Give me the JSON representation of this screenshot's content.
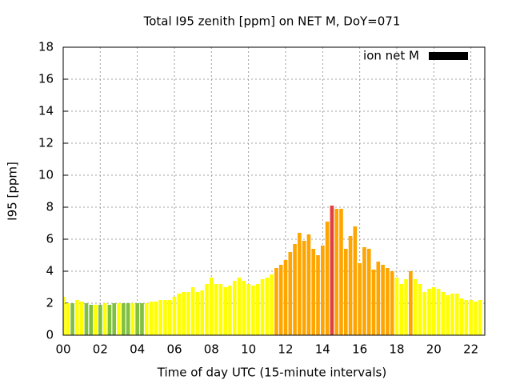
{
  "chart_data": {
    "type": "bar",
    "title": "Total I95 zenith [ppm] on NET M, DoY=071",
    "xlabel": "Time of day UTC (15-minute intervals)",
    "ylabel": "I95 [ppm]",
    "xlim": [
      0,
      22.75
    ],
    "ylim": [
      0,
      18
    ],
    "xticks": [
      {
        "value": 0,
        "label": "00"
      },
      {
        "value": 2,
        "label": "02"
      },
      {
        "value": 4,
        "label": "04"
      },
      {
        "value": 6,
        "label": "06"
      },
      {
        "value": 8,
        "label": "08"
      },
      {
        "value": 10,
        "label": "10"
      },
      {
        "value": 12,
        "label": "12"
      },
      {
        "value": 14,
        "label": "14"
      },
      {
        "value": 16,
        "label": "16"
      },
      {
        "value": 18,
        "label": "18"
      },
      {
        "value": 20,
        "label": "20"
      },
      {
        "value": 22,
        "label": "22"
      }
    ],
    "yticks": [
      0,
      2,
      4,
      6,
      8,
      10,
      12,
      14,
      16,
      18
    ],
    "grid": true,
    "legend": "top-right",
    "x": [
      0,
      0.25,
      0.5,
      0.75,
      1,
      1.25,
      1.5,
      1.75,
      2,
      2.25,
      2.5,
      2.75,
      3,
      3.25,
      3.5,
      3.75,
      4,
      4.25,
      4.5,
      4.75,
      5,
      5.25,
      5.5,
      5.75,
      6,
      6.25,
      6.5,
      6.75,
      7,
      7.25,
      7.5,
      7.75,
      8,
      8.25,
      8.5,
      8.75,
      9,
      9.25,
      9.5,
      9.75,
      10,
      10.25,
      10.5,
      10.75,
      11,
      11.25,
      11.5,
      11.75,
      12,
      12.25,
      12.5,
      12.75,
      13,
      13.25,
      13.5,
      13.75,
      14,
      14.25,
      14.5,
      14.75,
      15,
      15.25,
      15.5,
      15.75,
      16,
      16.25,
      16.5,
      16.75,
      17,
      17.25,
      17.5,
      17.75,
      18,
      18.25,
      18.5,
      18.75,
      19,
      19.25,
      19.5,
      19.75,
      20,
      20.25,
      20.5,
      20.75,
      21,
      21.25,
      21.5,
      21.75,
      22,
      22.25,
      22.5
    ],
    "series": [
      {
        "name": "ion net M",
        "color": "#000000",
        "values": [
          2.4,
          2.0,
          2.0,
          2.2,
          2.1,
          2.0,
          1.9,
          1.9,
          1.9,
          2.0,
          1.9,
          2.0,
          2.0,
          2.0,
          2.0,
          2.0,
          2.0,
          2.0,
          2.0,
          2.1,
          2.1,
          2.2,
          2.2,
          2.2,
          2.4,
          2.6,
          2.7,
          2.7,
          3.0,
          2.7,
          2.8,
          3.2,
          3.6,
          3.2,
          3.2,
          3.0,
          3.1,
          3.4,
          3.6,
          3.4,
          3.2,
          3.1,
          3.2,
          3.5,
          3.6,
          3.8,
          4.2,
          4.4,
          4.7,
          5.2,
          5.7,
          6.4,
          5.9,
          6.3,
          5.4,
          5.0,
          5.6,
          7.1,
          8.1,
          7.9,
          7.9,
          5.4,
          6.2,
          6.8,
          4.5,
          5.5,
          5.4,
          4.1,
          4.6,
          4.4,
          4.2,
          4.0,
          3.6,
          3.2,
          3.5,
          4.0,
          3.5,
          3.2,
          2.7,
          2.9,
          3.0,
          2.9,
          2.7,
          2.5,
          2.6,
          2.6,
          2.3,
          2.2,
          2.2,
          2.1,
          2.2
        ],
        "colors": [
          "#ffff00",
          "#ffff00",
          "#80c040",
          "#ffff00",
          "#ffff00",
          "#80c040",
          "#80c040",
          "#ffff00",
          "#80c040",
          "#ffff00",
          "#80c040",
          "#80c040",
          "#ffff00",
          "#80c040",
          "#80c040",
          "#ffff00",
          "#80c040",
          "#80c040",
          "#ffff00",
          "#ffff00",
          "#ffff00",
          "#ffff00",
          "#ffff00",
          "#ffff00",
          "#ffff00",
          "#ffff00",
          "#ffff00",
          "#ffff00",
          "#ffff00",
          "#ffff00",
          "#ffff00",
          "#ffff00",
          "#ffff00",
          "#ffff00",
          "#ffff00",
          "#ffff00",
          "#ffff00",
          "#ffff00",
          "#ffff00",
          "#ffff00",
          "#ffff00",
          "#ffff00",
          "#ffff00",
          "#ffff00",
          "#ffff00",
          "#ffff00",
          "#ffa500",
          "#ffa500",
          "#ffa500",
          "#ffa500",
          "#ffa500",
          "#ffa500",
          "#ffa500",
          "#ffa500",
          "#ffa500",
          "#ffa500",
          "#ffa500",
          "#ffa500",
          "#e04040",
          "#ffa500",
          "#ffa500",
          "#ffa500",
          "#ffa500",
          "#ffa500",
          "#ffa500",
          "#ffa500",
          "#ffa500",
          "#ffa500",
          "#ffa500",
          "#ffa500",
          "#ffa500",
          "#ffa500",
          "#ffff00",
          "#ffff00",
          "#ffff00",
          "#ffa500",
          "#ffff00",
          "#ffff00",
          "#ffff00",
          "#ffff00",
          "#ffff00",
          "#ffff00",
          "#ffff00",
          "#ffff00",
          "#ffff00",
          "#ffff00",
          "#ffff00",
          "#ffff00",
          "#ffff00",
          "#ffff00",
          "#ffff00"
        ]
      }
    ]
  }
}
